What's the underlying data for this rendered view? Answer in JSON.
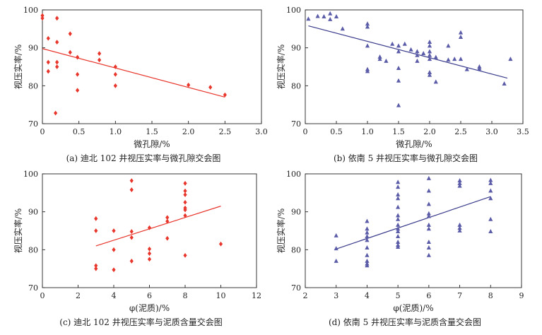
{
  "chart_data": [
    {
      "type": "scatter",
      "caption": "(a) 迪北 102 井视压实率与微孔隙交会图",
      "xlabel": "微孔隙/%",
      "ylabel": "视压实率/%",
      "xlim": [
        0,
        3.0
      ],
      "ylim": [
        70,
        100
      ],
      "xticks": [
        "0",
        "0.5",
        "1.0",
        "1.5",
        "2.0",
        "2.5",
        "3.0"
      ],
      "yticks": [
        "70",
        "80",
        "90",
        "100"
      ],
      "marker": "diamond",
      "color": "#e8362c",
      "line_color": "#e8362c",
      "trend": [
        [
          0,
          89.8
        ],
        [
          2.5,
          77
        ]
      ],
      "points": [
        [
          0,
          98.5
        ],
        [
          0,
          97.8
        ],
        [
          0.2,
          97.8
        ],
        [
          0.08,
          92.5
        ],
        [
          0.2,
          91.5
        ],
        [
          0.38,
          93.7
        ],
        [
          0.38,
          88.8
        ],
        [
          0.08,
          86.2
        ],
        [
          0.2,
          86.2
        ],
        [
          0.2,
          85
        ],
        [
          0.08,
          83.8
        ],
        [
          0.48,
          87.5
        ],
        [
          0.48,
          83
        ],
        [
          0.48,
          78.8
        ],
        [
          0.78,
          88.5
        ],
        [
          0.78,
          86.8
        ],
        [
          1.0,
          85
        ],
        [
          1.0,
          83
        ],
        [
          1.0,
          80
        ],
        [
          0.18,
          72.8
        ],
        [
          2.0,
          80.2
        ],
        [
          2.3,
          79.6
        ],
        [
          2.5,
          77.6
        ]
      ]
    },
    {
      "type": "scatter",
      "caption": "(b) 依南 5 井视压实率与微孔隙交会图",
      "xlabel": "微孔隙/%",
      "ylabel": "视压实率/%",
      "xlim": [
        0,
        3.5
      ],
      "ylim": [
        70,
        100
      ],
      "xticks": [
        "0",
        "0.5",
        "1.0",
        "1.5",
        "2.0",
        "2.5",
        "3.0",
        "3.5"
      ],
      "yticks": [
        "70",
        "80",
        "90",
        "100"
      ],
      "marker": "triangle",
      "color": "#5b5ca8",
      "line_color": "#3a3c8c",
      "trend": [
        [
          0.05,
          95.8
        ],
        [
          3.25,
          82
        ]
      ],
      "points": [
        [
          0.05,
          97.6
        ],
        [
          0.2,
          98.3
        ],
        [
          0.3,
          98.2
        ],
        [
          0.4,
          99
        ],
        [
          0.4,
          97.5
        ],
        [
          0.5,
          98.2
        ],
        [
          0.6,
          95
        ],
        [
          1.0,
          96.3
        ],
        [
          1.0,
          95.5
        ],
        [
          1.0,
          90.5
        ],
        [
          1.0,
          84.3
        ],
        [
          1.0,
          83.8
        ],
        [
          1.2,
          87.6
        ],
        [
          1.2,
          87
        ],
        [
          1.3,
          86.5
        ],
        [
          1.4,
          91
        ],
        [
          1.5,
          90.5
        ],
        [
          1.5,
          89
        ],
        [
          1.5,
          84.6
        ],
        [
          1.5,
          81.3
        ],
        [
          1.5,
          74.8
        ],
        [
          1.6,
          91
        ],
        [
          1.7,
          89.5
        ],
        [
          1.8,
          89
        ],
        [
          1.8,
          88
        ],
        [
          1.8,
          86.5
        ],
        [
          1.9,
          88.5
        ],
        [
          2.0,
          91.5
        ],
        [
          2.0,
          90.5
        ],
        [
          2.0,
          89
        ],
        [
          2.0,
          88
        ],
        [
          2.0,
          87
        ],
        [
          2.0,
          83.5
        ],
        [
          2.0,
          82.8
        ],
        [
          2.1,
          87.5
        ],
        [
          2.1,
          81
        ],
        [
          2.3,
          90.5
        ],
        [
          2.3,
          86.8
        ],
        [
          2.4,
          87
        ],
        [
          2.5,
          94
        ],
        [
          2.5,
          92.8
        ],
        [
          2.5,
          87
        ],
        [
          2.6,
          84.3
        ],
        [
          2.8,
          85
        ],
        [
          2.8,
          84.5
        ],
        [
          3.2,
          80.5
        ],
        [
          3.3,
          87
        ]
      ]
    },
    {
      "type": "scatter",
      "caption": "(c) 迪北 102 井视压实率与泥质含量交会图",
      "xlabel": "φ(泥质)/%",
      "ylabel": "视压实率/%",
      "xlim": [
        0,
        12
      ],
      "ylim": [
        70,
        100
      ],
      "xticks": [
        "0",
        "2",
        "4",
        "6",
        "8",
        "10",
        "12"
      ],
      "yticks": [
        "70",
        "80",
        "90",
        "100"
      ],
      "marker": "diamond",
      "color": "#e8362c",
      "line_color": "#e8362c",
      "trend": [
        [
          3,
          81
        ],
        [
          10,
          91.5
        ]
      ],
      "points": [
        [
          3,
          88.2
        ],
        [
          3,
          85
        ],
        [
          3,
          75.8
        ],
        [
          3,
          75
        ],
        [
          4,
          85
        ],
        [
          4,
          80
        ],
        [
          4,
          74.7
        ],
        [
          5,
          98.2
        ],
        [
          5,
          95.8
        ],
        [
          5,
          84.8
        ],
        [
          5,
          83.2
        ],
        [
          5,
          77
        ],
        [
          6,
          85.8
        ],
        [
          6,
          80.2
        ],
        [
          6,
          79
        ],
        [
          6,
          77.5
        ],
        [
          7,
          88.5
        ],
        [
          7,
          87.5
        ],
        [
          7,
          83
        ],
        [
          8,
          97.5
        ],
        [
          8,
          95.5
        ],
        [
          8,
          94.5
        ],
        [
          8,
          92.5
        ],
        [
          8,
          91
        ],
        [
          8,
          90.5
        ],
        [
          8,
          89
        ],
        [
          8,
          78.5
        ],
        [
          10,
          81.5
        ]
      ]
    },
    {
      "type": "scatter",
      "caption": "(d) 依南 5 井视压实率与泥质含量交会图",
      "xlabel": "φ(泥质)/%",
      "ylabel": "视压实率/%",
      "xlim": [
        2,
        9
      ],
      "ylim": [
        70,
        100
      ],
      "xticks": [
        "2",
        "3",
        "4",
        "5",
        "6",
        "7",
        "8",
        "9"
      ],
      "yticks": [
        "70",
        "80",
        "90",
        "100"
      ],
      "marker": "triangle",
      "color": "#5b5ca8",
      "line_color": "#3a3c8c",
      "trend": [
        [
          3,
          80.2
        ],
        [
          8,
          94
        ]
      ],
      "points": [
        [
          3,
          83.7
        ],
        [
          3,
          80.3
        ],
        [
          3,
          77
        ],
        [
          4,
          87.5
        ],
        [
          4,
          85.5
        ],
        [
          4,
          84.5
        ],
        [
          4,
          83.5
        ],
        [
          4,
          82.5
        ],
        [
          4,
          80.5
        ],
        [
          4,
          78.5
        ],
        [
          4,
          77
        ],
        [
          4,
          76.3
        ],
        [
          4,
          75.8
        ],
        [
          5,
          97.8
        ],
        [
          5,
          96.5
        ],
        [
          5,
          94.5
        ],
        [
          5,
          93.5
        ],
        [
          5,
          91.2
        ],
        [
          5,
          89
        ],
        [
          5,
          88
        ],
        [
          5,
          86.5
        ],
        [
          5,
          85.5
        ],
        [
          5,
          84.8
        ],
        [
          5,
          83.5
        ],
        [
          5,
          82
        ],
        [
          5,
          81.2
        ],
        [
          5,
          80.7
        ],
        [
          6,
          98.8
        ],
        [
          6,
          95.5
        ],
        [
          6,
          92
        ],
        [
          6,
          89.5
        ],
        [
          6,
          88.8
        ],
        [
          6,
          86.5
        ],
        [
          6,
          85.5
        ],
        [
          6,
          82
        ],
        [
          6,
          80.5
        ],
        [
          6,
          78.5
        ],
        [
          7,
          98.2
        ],
        [
          7,
          97.5
        ],
        [
          7,
          96.8
        ],
        [
          7,
          86.5
        ],
        [
          7,
          85.7
        ],
        [
          7,
          85
        ],
        [
          8,
          98.3
        ],
        [
          8,
          97.5
        ],
        [
          8,
          95.5
        ],
        [
          8,
          93.5
        ],
        [
          8,
          88
        ],
        [
          8,
          84.8
        ]
      ]
    }
  ]
}
